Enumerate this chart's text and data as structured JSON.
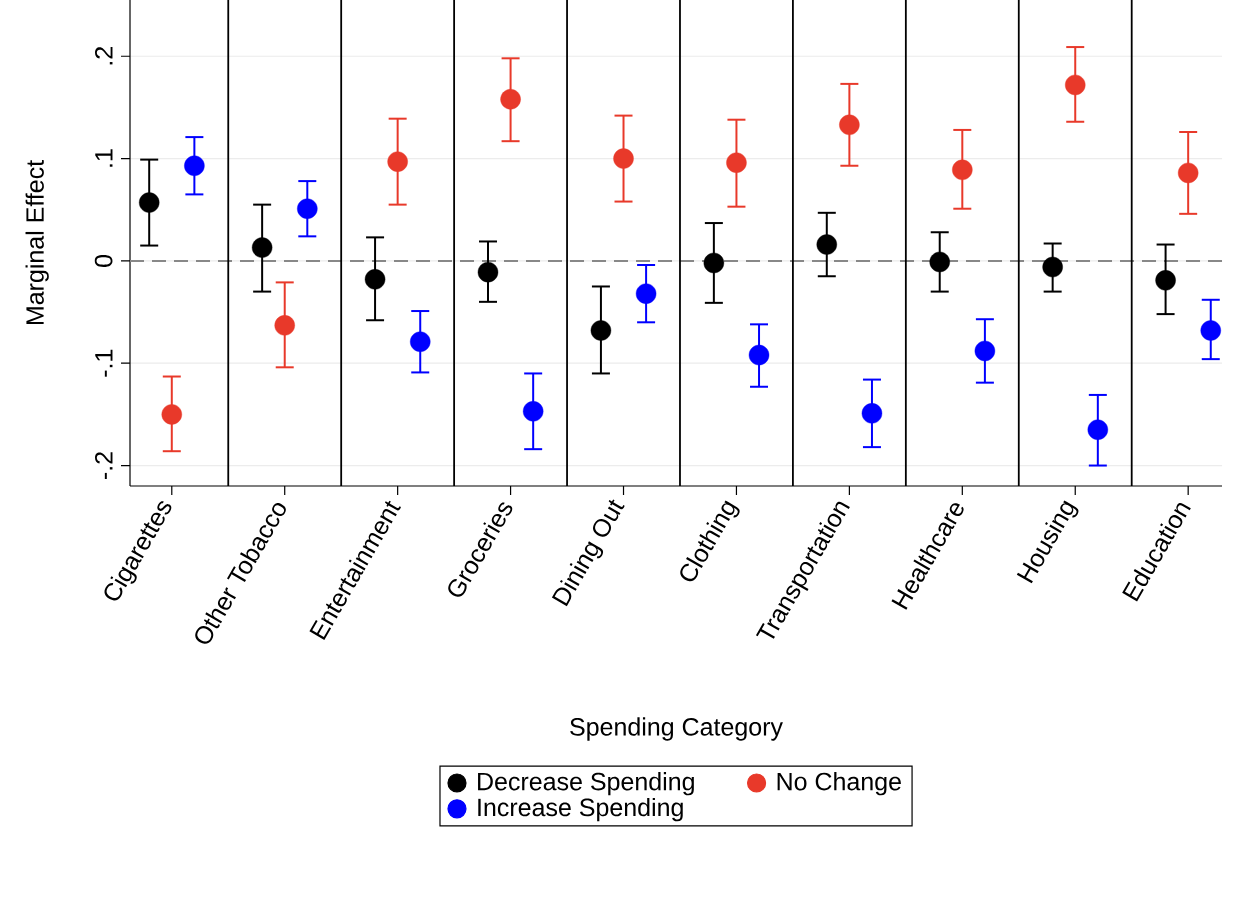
{
  "chart_data": {
    "type": "scatter",
    "xlabel": "Spending Category",
    "ylabel": "Marginal Effect",
    "categories": [
      "Cigarettes",
      "Other Tobacco",
      "Entertainment",
      "Groceries",
      "Dining Out",
      "Clothing",
      "Transportation",
      "Healthcare",
      "Housing",
      "Education"
    ],
    "series": [
      {
        "name": "Decrease Spending",
        "color": "#000000",
        "values": [
          0.057,
          0.013,
          -0.018,
          -0.011,
          -0.068,
          -0.002,
          0.016,
          -0.001,
          -0.006,
          -0.019
        ],
        "errors": [
          [
            0.015,
            0.099
          ],
          [
            -0.03,
            0.055
          ],
          [
            -0.058,
            0.023
          ],
          [
            -0.04,
            0.019
          ],
          [
            -0.11,
            -0.025
          ],
          [
            -0.041,
            0.037
          ],
          [
            -0.015,
            0.047
          ],
          [
            -0.03,
            0.028
          ],
          [
            -0.03,
            0.017
          ],
          [
            -0.052,
            0.016
          ]
        ]
      },
      {
        "name": "No Change",
        "color": "#e8392a",
        "values": [
          -0.15,
          -0.063,
          0.097,
          0.158,
          0.1,
          0.096,
          0.133,
          0.089,
          0.172,
          0.086
        ],
        "errors": [
          [
            -0.186,
            -0.113
          ],
          [
            -0.104,
            -0.021
          ],
          [
            0.055,
            0.139
          ],
          [
            0.117,
            0.198
          ],
          [
            0.058,
            0.142
          ],
          [
            0.053,
            0.138
          ],
          [
            0.093,
            0.173
          ],
          [
            0.051,
            0.128
          ],
          [
            0.136,
            0.209
          ],
          [
            0.046,
            0.126
          ]
        ]
      },
      {
        "name": "Increase Spending",
        "color": "#0000ff",
        "values": [
          0.093,
          0.051,
          -0.079,
          -0.147,
          -0.032,
          -0.092,
          -0.149,
          -0.088,
          -0.165,
          -0.068
        ],
        "errors": [
          [
            0.065,
            0.121
          ],
          [
            0.024,
            0.078
          ],
          [
            -0.109,
            -0.049
          ],
          [
            -0.184,
            -0.11
          ],
          [
            -0.06,
            -0.004
          ],
          [
            -0.123,
            -0.062
          ],
          [
            -0.182,
            -0.116
          ],
          [
            -0.119,
            -0.057
          ],
          [
            -0.2,
            -0.131
          ],
          [
            -0.096,
            -0.038
          ]
        ]
      }
    ],
    "ylim": [
      -0.22,
      0.255
    ],
    "yticks": [
      {
        "value": -0.2,
        "label": "-.2"
      },
      {
        "value": -0.1,
        "label": "-.1"
      },
      {
        "value": 0,
        "label": "0"
      },
      {
        "value": 0.1,
        "label": ".1"
      },
      {
        "value": 0.2,
        "label": ".2"
      }
    ],
    "ref_lines": [
      {
        "axis": "y",
        "value": 0,
        "color": "#888888",
        "line_style": "dashed"
      }
    ],
    "grid": "y",
    "legend": "bottom",
    "marker": "circle"
  }
}
